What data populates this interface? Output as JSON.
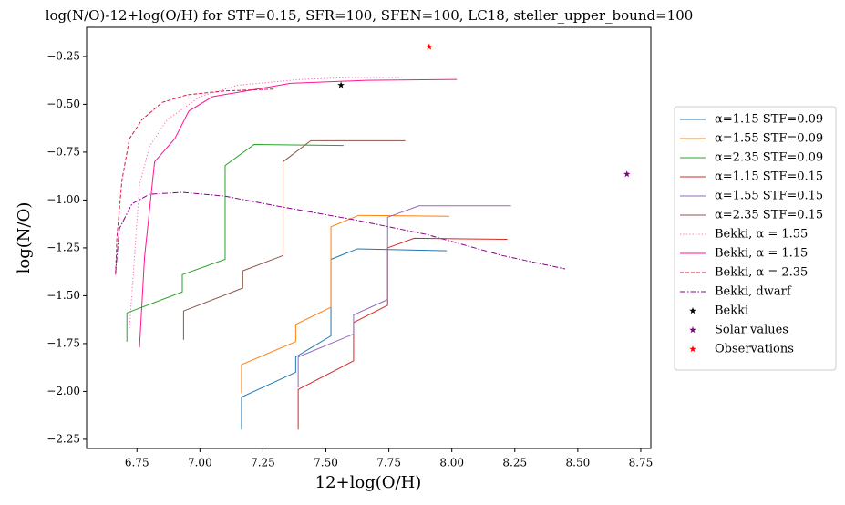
{
  "chart_data": {
    "type": "line",
    "title": "log(N/O)-12+log(O/H) for STF=0.15, SFR=100, SFEN=100, LC18, steller_upper_bound=100",
    "x_label": "12+log(O/H)",
    "y_label": "log(N/O)",
    "xlim": [
      6.55,
      8.79
    ],
    "ylim": [
      -2.298,
      -0.098
    ],
    "xticks": [
      6.75,
      {
        "value": 7,
        "label": "7.00"
      },
      7.25,
      {
        "value": 7.5,
        "label": "7.50"
      },
      7.75,
      {
        "value": 8,
        "label": "8.00"
      },
      8.25,
      {
        "value": 8.5,
        "label": "8.50"
      },
      8.75
    ],
    "yticks": [
      {
        "value": -0.25,
        "label": "−0.25"
      },
      {
        "value": -0.5,
        "label": "−0.50"
      },
      {
        "value": -0.75,
        "label": "−0.75"
      },
      {
        "value": -1,
        "label": "−1.00"
      },
      {
        "value": -1.25,
        "label": "−1.25"
      },
      {
        "value": -1.5,
        "label": "−1.50"
      },
      {
        "value": -1.75,
        "label": "−1.75"
      },
      {
        "value": -2,
        "label": "−2.00"
      },
      {
        "value": -2.25,
        "label": "−2.25"
      }
    ],
    "legend": "outside-right",
    "series": [
      {
        "name": "α=1.15 STF=0.09",
        "color": "#1f77b4",
        "style": "solid",
        "x": [
          7.165,
          7.165,
          7.38,
          7.38,
          7.52,
          7.52,
          7.625,
          7.98
        ],
        "values": [
          -2.2,
          -2.03,
          -1.9,
          -1.82,
          -1.71,
          -1.31,
          -1.255,
          -1.265
        ]
      },
      {
        "name": "α=1.55 STF=0.09",
        "color": "#ff7f0e",
        "style": "solid",
        "x": [
          7.165,
          7.165,
          7.38,
          7.38,
          7.52,
          7.52,
          7.63,
          7.99
        ],
        "values": [
          -2.01,
          -1.86,
          -1.74,
          -1.65,
          -1.56,
          -1.14,
          -1.08,
          -1.085
        ]
      },
      {
        "name": "α=2.35 STF=0.09",
        "color": "#2ca02c",
        "style": "solid",
        "x": [
          6.71,
          6.71,
          6.93,
          6.93,
          7.1,
          7.1,
          7.215,
          7.57
        ],
        "values": [
          -1.74,
          -1.59,
          -1.48,
          -1.39,
          -1.31,
          -0.82,
          -0.71,
          -0.715
        ]
      },
      {
        "name": "α=1.15 STF=0.15",
        "color": "#d62728",
        "style": "solid",
        "x": [
          7.39,
          7.39,
          7.61,
          7.61,
          7.745,
          7.745,
          7.85,
          8.22
        ],
        "values": [
          -2.2,
          -1.99,
          -1.84,
          -1.64,
          -1.55,
          -1.25,
          -1.2,
          -1.205
        ]
      },
      {
        "name": "α=1.55 STF=0.15",
        "color": "#9467bd",
        "style": "solid",
        "x": [
          7.39,
          7.39,
          7.61,
          7.61,
          7.745,
          7.745,
          7.87,
          8.235
        ],
        "values": [
          -1.98,
          -1.82,
          -1.7,
          -1.6,
          -1.52,
          -1.09,
          -1.03,
          -1.03
        ]
      },
      {
        "name": "α=2.35 STF=0.15",
        "color": "#8c564b",
        "style": "solid",
        "x": [
          6.935,
          6.935,
          7.17,
          7.17,
          7.33,
          7.33,
          7.44,
          7.815
        ],
        "values": [
          -1.73,
          -1.58,
          -1.46,
          -1.37,
          -1.29,
          -0.8,
          -0.69,
          -0.69
        ]
      },
      {
        "name": "Bekki, α = 1.55",
        "color": "#ff69b4",
        "style": "dotted",
        "x": [
          6.72,
          6.74,
          6.76,
          6.8,
          6.87,
          7.0,
          7.15,
          7.4,
          7.6,
          7.8
        ],
        "values": [
          -1.67,
          -1.3,
          -0.92,
          -0.72,
          -0.58,
          -0.46,
          -0.4,
          -0.37,
          -0.36,
          -0.36
        ]
      },
      {
        "name": "Bekki, α = 1.15",
        "color": "#ff1493",
        "style": "solid",
        "x": [
          6.76,
          6.78,
          6.82,
          6.9,
          6.956,
          7.05,
          7.36,
          7.66,
          8.02
        ],
        "values": [
          -1.77,
          -1.3,
          -0.8,
          -0.68,
          -0.535,
          -0.46,
          -0.39,
          -0.375,
          -0.37
        ]
      },
      {
        "name": "Bekki, α = 2.35",
        "color": "#dc143c",
        "style": "dashed",
        "x": [
          6.665,
          6.67,
          6.69,
          6.72,
          6.77,
          6.85,
          6.95,
          7.1,
          7.3
        ],
        "values": [
          -1.39,
          -1.2,
          -0.9,
          -0.68,
          -0.58,
          -0.49,
          -0.45,
          -0.43,
          -0.42
        ]
      },
      {
        "name": "Bekki, dwarf",
        "color": "#8b008b",
        "style": "dashdot",
        "x": [
          6.665,
          6.68,
          6.73,
          6.8,
          6.93,
          7.1,
          7.3,
          7.6,
          7.9,
          8.2,
          8.45
        ],
        "values": [
          -1.38,
          -1.15,
          -1.02,
          -0.97,
          -0.96,
          -0.98,
          -1.03,
          -1.1,
          -1.18,
          -1.29,
          -1.36
        ]
      },
      {
        "name": "Bekki",
        "color": "#000000",
        "style": "star",
        "x": [
          7.56
        ],
        "values": [
          -0.4
        ]
      },
      {
        "name": "Solar values",
        "color": "#800080",
        "style": "star",
        "x": [
          8.695
        ],
        "values": [
          -0.865
        ]
      },
      {
        "name": "Observations",
        "color": "#ff0000",
        "style": "star",
        "x": [
          7.91
        ],
        "values": [
          -0.2
        ]
      }
    ]
  }
}
